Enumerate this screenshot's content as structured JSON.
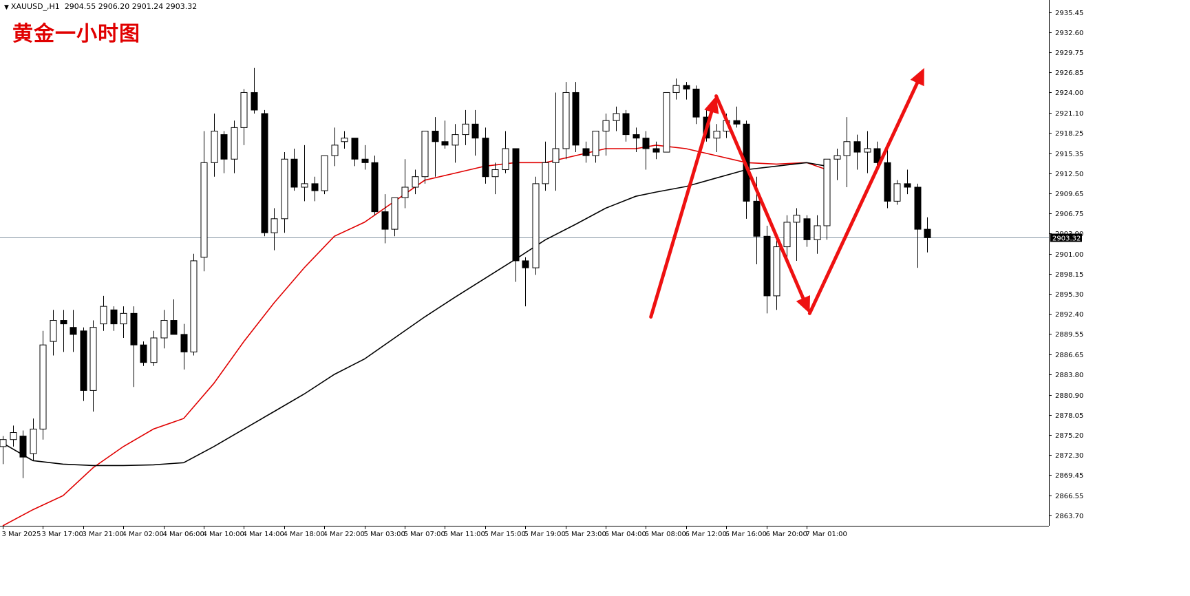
{
  "header": {
    "symbol": "XAUUSD_,H1",
    "ohlc": "2904.55 2906.20 2901.24 2903.32"
  },
  "overlay_title": "黄金一小时图",
  "current_price_label": "2903.32",
  "colors": {
    "bull_fill": "#ffffff",
    "bear_fill": "#000000",
    "ma_fast": "#e00000",
    "ma_slow": "#000000",
    "arrow": "#ee1111",
    "price_line": "#8a9aa8"
  },
  "chart_data": {
    "type": "candlestick",
    "title": "",
    "xlabel": "",
    "ylabel": "",
    "ylim": [
      2862.2,
      2937.2
    ],
    "grid": false,
    "y_ticks": [
      "2935.45",
      "2932.60",
      "2929.75",
      "2926.85",
      "2924.00",
      "2921.10",
      "2918.25",
      "2915.35",
      "2912.50",
      "2909.65",
      "2906.75",
      "2903.90",
      "2901.00",
      "2898.15",
      "2895.30",
      "2892.40",
      "2889.55",
      "2886.65",
      "2883.80",
      "2880.90",
      "2878.05",
      "2875.20",
      "2872.30",
      "2869.45",
      "2866.55",
      "2863.70"
    ],
    "x_ticks": [
      {
        "i": 0,
        "label": "3 Mar 2025"
      },
      {
        "i": 4,
        "label": "3 Mar 17:00"
      },
      {
        "i": 8,
        "label": "3 Mar 21:00"
      },
      {
        "i": 12,
        "label": "4 Mar 02:00"
      },
      {
        "i": 16,
        "label": "4 Mar 06:00"
      },
      {
        "i": 20,
        "label": "4 Mar 10:00"
      },
      {
        "i": 24,
        "label": "4 Mar 14:00"
      },
      {
        "i": 28,
        "label": "4 Mar 18:00"
      },
      {
        "i": 32,
        "label": "4 Mar 22:00"
      },
      {
        "i": 36,
        "label": "5 Mar 03:00"
      },
      {
        "i": 40,
        "label": "5 Mar 07:00"
      },
      {
        "i": 44,
        "label": "5 Mar 11:00"
      },
      {
        "i": 48,
        "label": "5 Mar 15:00"
      },
      {
        "i": 52,
        "label": "5 Mar 19:00"
      },
      {
        "i": 56,
        "label": "5 Mar 23:00"
      },
      {
        "i": 60,
        "label": "6 Mar 04:00"
      },
      {
        "i": 64,
        "label": "6 Mar 08:00"
      },
      {
        "i": 68,
        "label": "6 Mar 12:00"
      },
      {
        "i": 72,
        "label": "6 Mar 16:00"
      },
      {
        "i": 76,
        "label": "6 Mar 20:00"
      },
      {
        "i": 80,
        "label": "7 Mar 01:00"
      }
    ],
    "candles": [
      [
        2873.5,
        2875.0,
        2871.0,
        2874.5
      ],
      [
        2874.5,
        2876.5,
        2873.5,
        2875.5
      ],
      [
        2875.0,
        2875.8,
        2869.0,
        2872.0
      ],
      [
        2872.5,
        2877.5,
        2871.5,
        2876.0
      ],
      [
        2876.0,
        2890.0,
        2874.5,
        2888.0
      ],
      [
        2888.5,
        2893.0,
        2886.5,
        2891.5
      ],
      [
        2891.5,
        2893.0,
        2887.0,
        2891.0
      ],
      [
        2890.5,
        2893.0,
        2887.0,
        2889.5
      ],
      [
        2890.0,
        2890.5,
        2880.0,
        2881.5
      ],
      [
        2881.5,
        2891.5,
        2878.5,
        2890.5
      ],
      [
        2891.0,
        2895.0,
        2890.0,
        2893.5
      ],
      [
        2893.0,
        2893.5,
        2890.0,
        2891.0
      ],
      [
        2891.0,
        2893.5,
        2889.0,
        2892.5
      ],
      [
        2892.5,
        2893.5,
        2882.0,
        2888.0
      ],
      [
        2888.0,
        2888.5,
        2885.0,
        2885.5
      ],
      [
        2885.5,
        2890.0,
        2885.0,
        2889.0
      ],
      [
        2889.0,
        2893.0,
        2887.5,
        2891.5
      ],
      [
        2891.5,
        2894.5,
        2889.5,
        2889.5
      ],
      [
        2889.5,
        2891.0,
        2884.5,
        2887.0
      ],
      [
        2887.0,
        2901.0,
        2886.5,
        2900.0
      ],
      [
        2900.5,
        2918.5,
        2898.5,
        2914.0
      ],
      [
        2914.0,
        2921.0,
        2912.0,
        2918.5
      ],
      [
        2918.0,
        2918.5,
        2912.5,
        2914.5
      ],
      [
        2914.5,
        2920.0,
        2912.5,
        2919.0
      ],
      [
        2919.0,
        2924.5,
        2916.5,
        2924.0
      ],
      [
        2924.0,
        2927.5,
        2921.0,
        2921.5
      ],
      [
        2921.0,
        2921.5,
        2903.5,
        2904.0
      ],
      [
        2904.0,
        2907.5,
        2901.5,
        2906.0
      ],
      [
        2906.0,
        2915.5,
        2904.0,
        2914.5
      ],
      [
        2914.5,
        2916.0,
        2910.0,
        2910.5
      ],
      [
        2910.5,
        2916.5,
        2908.5,
        2911.0
      ],
      [
        2911.0,
        2912.0,
        2908.5,
        2910.0
      ],
      [
        2910.0,
        2915.0,
        2909.5,
        2915.0
      ],
      [
        2915.0,
        2919.0,
        2913.5,
        2916.5
      ],
      [
        2917.0,
        2918.5,
        2916.0,
        2917.5
      ],
      [
        2917.5,
        2917.5,
        2913.5,
        2914.5
      ],
      [
        2914.5,
        2916.5,
        2913.0,
        2914.0
      ],
      [
        2914.0,
        2915.0,
        2906.5,
        2907.0
      ],
      [
        2907.0,
        2909.5,
        2902.5,
        2904.5
      ],
      [
        2904.5,
        2909.0,
        2903.5,
        2909.0
      ],
      [
        2909.0,
        2914.5,
        2907.5,
        2910.5
      ],
      [
        2910.5,
        2913.0,
        2909.5,
        2912.0
      ],
      [
        2912.0,
        2918.5,
        2911.0,
        2918.5
      ],
      [
        2918.5,
        2920.5,
        2912.0,
        2917.0
      ],
      [
        2917.0,
        2920.0,
        2916.0,
        2916.5
      ],
      [
        2916.5,
        2919.5,
        2914.0,
        2918.0
      ],
      [
        2918.0,
        2921.5,
        2916.5,
        2919.5
      ],
      [
        2919.5,
        2921.5,
        2915.0,
        2917.5
      ],
      [
        2917.5,
        2919.0,
        2911.0,
        2912.0
      ],
      [
        2912.0,
        2914.0,
        2909.5,
        2913.0
      ],
      [
        2913.0,
        2918.5,
        2912.5,
        2916.0
      ],
      [
        2916.0,
        2916.0,
        2897.0,
        2900.0
      ],
      [
        2900.0,
        2900.5,
        2893.5,
        2899.0
      ],
      [
        2899.0,
        2912.0,
        2898.0,
        2911.0
      ],
      [
        2911.0,
        2917.0,
        2910.0,
        2914.0
      ],
      [
        2914.0,
        2924.0,
        2910.0,
        2916.0
      ],
      [
        2916.0,
        2925.5,
        2914.5,
        2924.0
      ],
      [
        2924.0,
        2925.5,
        2915.5,
        2916.5
      ],
      [
        2916.0,
        2917.0,
        2914.0,
        2915.0
      ],
      [
        2915.0,
        2918.0,
        2914.0,
        2918.5
      ],
      [
        2918.5,
        2921.0,
        2915.0,
        2920.0
      ],
      [
        2920.0,
        2922.0,
        2918.5,
        2921.0
      ],
      [
        2921.0,
        2921.5,
        2917.0,
        2918.0
      ],
      [
        2918.0,
        2919.0,
        2915.5,
        2917.5
      ],
      [
        2917.5,
        2918.5,
        2913.0,
        2916.0
      ],
      [
        2916.0,
        2917.0,
        2914.5,
        2915.5
      ],
      [
        2915.5,
        2924.0,
        2915.5,
        2924.0
      ],
      [
        2924.0,
        2926.0,
        2923.0,
        2925.0
      ],
      [
        2925.0,
        2925.5,
        2923.0,
        2924.5
      ],
      [
        2924.5,
        2925.0,
        2919.5,
        2920.5
      ],
      [
        2920.5,
        2921.5,
        2917.0,
        2917.5
      ],
      [
        2917.5,
        2919.5,
        2915.5,
        2918.5
      ],
      [
        2918.5,
        2921.0,
        2917.5,
        2920.0
      ],
      [
        2920.0,
        2922.0,
        2919.0,
        2919.5
      ],
      [
        2919.5,
        2920.0,
        2906.0,
        2908.5
      ],
      [
        2908.5,
        2912.0,
        2899.5,
        2903.5
      ],
      [
        2903.5,
        2905.0,
        2892.5,
        2895.0
      ],
      [
        2895.0,
        2903.5,
        2893.0,
        2902.0
      ],
      [
        2902.0,
        2906.5,
        2899.5,
        2905.5
      ],
      [
        2905.5,
        2907.5,
        2900.0,
        2906.5
      ],
      [
        2906.0,
        2906.5,
        2902.0,
        2903.0
      ],
      [
        2903.0,
        2906.5,
        2901.0,
        2905.0
      ],
      [
        2905.0,
        2914.0,
        2903.0,
        2914.5
      ],
      [
        2914.5,
        2916.0,
        2911.5,
        2915.0
      ],
      [
        2915.0,
        2920.5,
        2910.5,
        2917.0
      ],
      [
        2917.0,
        2918.0,
        2913.0,
        2915.5
      ],
      [
        2915.5,
        2918.5,
        2912.5,
        2916.0
      ],
      [
        2916.0,
        2917.0,
        2913.0,
        2914.0
      ],
      [
        2914.0,
        2916.0,
        2907.5,
        2908.5
      ],
      [
        2908.5,
        2911.5,
        2908.0,
        2911.0
      ],
      [
        2911.0,
        2913.0,
        2909.5,
        2910.5
      ],
      [
        2910.5,
        2911.0,
        2899.0,
        2904.5
      ],
      [
        2904.5,
        2906.2,
        2901.2,
        2903.3
      ]
    ],
    "ma_fast": [
      [
        0,
        2862.2
      ],
      [
        3,
        2864.5
      ],
      [
        6,
        2866.5
      ],
      [
        9,
        2870.5
      ],
      [
        12,
        2873.5
      ],
      [
        15,
        2876.0
      ],
      [
        18,
        2877.5
      ],
      [
        21,
        2882.5
      ],
      [
        24,
        2888.5
      ],
      [
        27,
        2894.0
      ],
      [
        30,
        2899.0
      ],
      [
        33,
        2903.5
      ],
      [
        36,
        2905.5
      ],
      [
        39,
        2908.5
      ],
      [
        42,
        2911.5
      ],
      [
        45,
        2912.5
      ],
      [
        48,
        2913.5
      ],
      [
        51,
        2914.0
      ],
      [
        54,
        2914.0
      ],
      [
        57,
        2915.0
      ],
      [
        60,
        2916.0
      ],
      [
        63,
        2916.0
      ],
      [
        65,
        2916.5
      ],
      [
        68,
        2916.0
      ],
      [
        71,
        2915.0
      ],
      [
        74,
        2914.0
      ],
      [
        77,
        2913.8
      ],
      [
        80,
        2914.0
      ],
      [
        82,
        2913.0
      ]
    ],
    "ma_slow": [
      [
        0,
        2874.0
      ],
      [
        3,
        2871.5
      ],
      [
        6,
        2871.0
      ],
      [
        9,
        2870.8
      ],
      [
        12,
        2870.8
      ],
      [
        15,
        2870.9
      ],
      [
        18,
        2871.2
      ],
      [
        21,
        2873.5
      ],
      [
        24,
        2876.0
      ],
      [
        27,
        2878.5
      ],
      [
        30,
        2881.0
      ],
      [
        33,
        2883.8
      ],
      [
        36,
        2886.0
      ],
      [
        39,
        2889.0
      ],
      [
        42,
        2892.0
      ],
      [
        45,
        2894.8
      ],
      [
        48,
        2897.5
      ],
      [
        51,
        2900.2
      ],
      [
        54,
        2903.0
      ],
      [
        57,
        2905.2
      ],
      [
        60,
        2907.5
      ],
      [
        63,
        2909.2
      ],
      [
        65,
        2909.8
      ],
      [
        68,
        2910.6
      ],
      [
        71,
        2911.8
      ],
      [
        74,
        2913.0
      ],
      [
        77,
        2913.5
      ],
      [
        80,
        2914.0
      ],
      [
        82,
        2913.5
      ]
    ],
    "arrows": [
      [
        [
          64.5,
          2892.0
        ],
        [
          71.0,
          2923.5
        ]
      ],
      [
        [
          71.0,
          2923.5
        ],
        [
          80.3,
          2892.5
        ]
      ],
      [
        [
          80.3,
          2892.5
        ],
        [
          91.7,
          2927.5
        ]
      ]
    ]
  }
}
